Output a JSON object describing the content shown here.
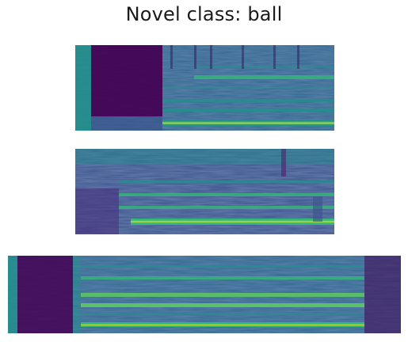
{
  "figure": {
    "title": "Novel class: ball"
  },
  "colormap": [
    "#440154",
    "#3b528b",
    "#21918c",
    "#5ec962",
    "#fde725"
  ],
  "spectrograms": [
    {
      "name": "spectrogram-1"
    },
    {
      "name": "spectrogram-2"
    },
    {
      "name": "spectrogram-3"
    }
  ]
}
